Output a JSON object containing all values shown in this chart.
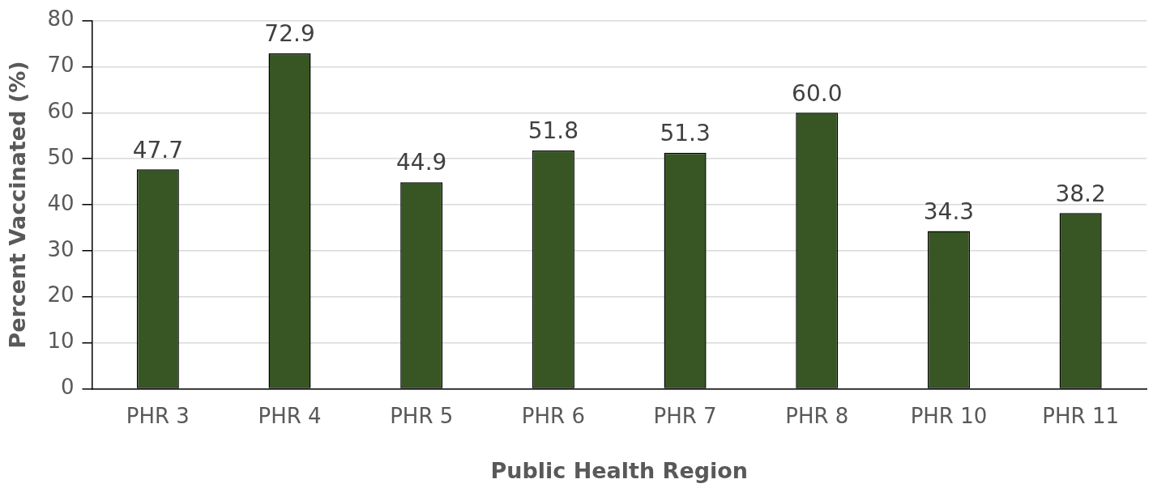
{
  "chart_data": {
    "type": "bar",
    "xlabel": "Public Health Region",
    "ylabel": "Percent Vaccinated (%)",
    "categories": [
      "PHR 3",
      "PHR 4",
      "PHR 5",
      "PHR 6",
      "PHR 7",
      "PHR 8",
      "PHR 10",
      "PHR 11"
    ],
    "values": [
      47.7,
      72.9,
      44.9,
      51.8,
      51.3,
      60.0,
      34.3,
      38.2
    ],
    "value_labels": [
      "47.7",
      "72.9",
      "44.9",
      "51.8",
      "51.3",
      "60.0",
      "34.3",
      "38.2"
    ],
    "color": "#375623",
    "ylim": [
      0,
      80
    ],
    "yticks": [
      0,
      10,
      20,
      30,
      40,
      50,
      60,
      70,
      80
    ],
    "grid": "y",
    "legend": false
  }
}
